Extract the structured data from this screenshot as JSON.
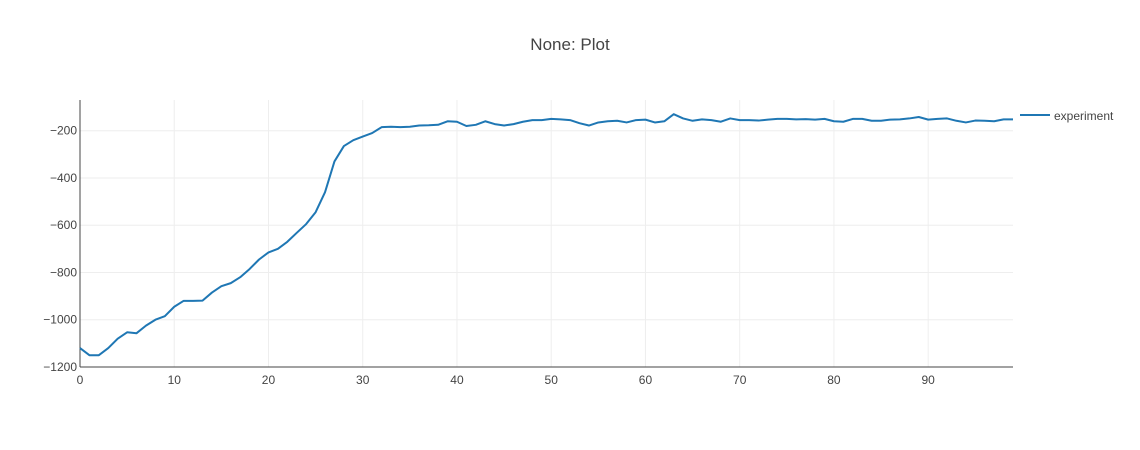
{
  "chart_data": {
    "type": "line",
    "title": "None: Plot",
    "xlabel": "",
    "ylabel": "",
    "xlim": [
      0,
      99
    ],
    "ylim": [
      -1200,
      -70
    ],
    "x_ticks": [
      0,
      10,
      20,
      30,
      40,
      50,
      60,
      70,
      80,
      90
    ],
    "y_ticks": [
      -1200,
      -1000,
      -800,
      -600,
      -400,
      -200
    ],
    "grid": true,
    "legend_position": "top-right",
    "series": [
      {
        "name": "experiment",
        "color": "#1f77b4",
        "x": [
          0,
          1,
          2,
          3,
          4,
          5,
          6,
          7,
          8,
          9,
          10,
          11,
          12,
          13,
          14,
          15,
          16,
          17,
          18,
          19,
          20,
          21,
          22,
          23,
          24,
          25,
          26,
          27,
          28,
          29,
          30,
          31,
          32,
          33,
          34,
          35,
          36,
          37,
          38,
          39,
          40,
          41,
          42,
          43,
          44,
          45,
          46,
          47,
          48,
          49,
          50,
          51,
          52,
          53,
          54,
          55,
          56,
          57,
          58,
          59,
          60,
          61,
          62,
          63,
          64,
          65,
          66,
          67,
          68,
          69,
          70,
          71,
          72,
          73,
          74,
          75,
          76,
          77,
          78,
          79,
          80,
          81,
          82,
          83,
          84,
          85,
          86,
          87,
          88,
          89,
          90,
          91,
          92,
          93,
          94,
          95,
          96,
          97,
          98,
          99
        ],
        "y": [
          -1120,
          -1150,
          -1150,
          -1120,
          -1080,
          -1053,
          -1057,
          -1025,
          -1000,
          -985,
          -945,
          -920,
          -920,
          -919,
          -885,
          -858,
          -845,
          -820,
          -785,
          -745,
          -715,
          -700,
          -670,
          -632,
          -595,
          -545,
          -460,
          -330,
          -265,
          -240,
          -225,
          -210,
          -185,
          -183,
          -185,
          -183,
          -178,
          -177,
          -175,
          -160,
          -162,
          -180,
          -175,
          -160,
          -172,
          -178,
          -172,
          -162,
          -155,
          -155,
          -150,
          -152,
          -155,
          -168,
          -178,
          -165,
          -160,
          -158,
          -165,
          -155,
          -153,
          -165,
          -160,
          -130,
          -148,
          -158,
          -152,
          -155,
          -162,
          -148,
          -155,
          -155,
          -157,
          -153,
          -150,
          -150,
          -152,
          -151,
          -153,
          -150,
          -160,
          -162,
          -150,
          -150,
          -158,
          -158,
          -153,
          -152,
          -148,
          -142,
          -153,
          -150,
          -148,
          -158,
          -165,
          -157,
          -158,
          -160,
          -152,
          -152
        ]
      }
    ]
  }
}
